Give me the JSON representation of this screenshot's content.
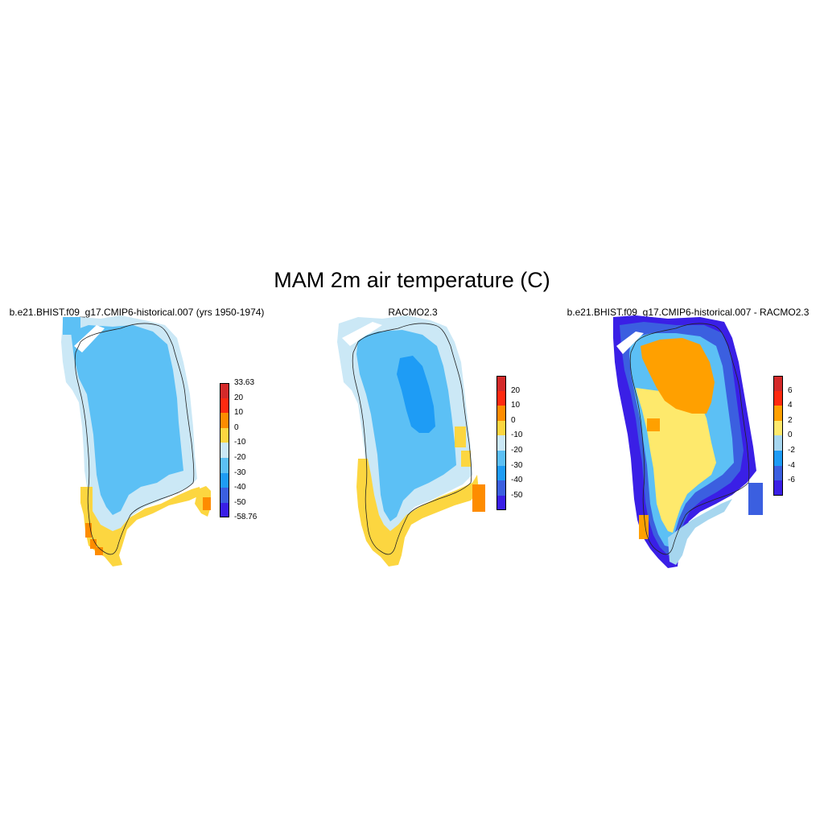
{
  "figure": {
    "title": "MAM 2m air temperature (C)"
  },
  "colors": {
    "c1": "#3a1fe6",
    "c2": "#3b5fe0",
    "c3": "#1e9cf5",
    "c4": "#5cc0f5",
    "c5": "#cbe8f6",
    "c6": "#fcd640",
    "c7": "#fe8c00",
    "c8": "#ff2a10",
    "c9": "#d42a2a",
    "d4": "#fee96c",
    "d3": "#ffa000",
    "d2": "#a6d6ef"
  },
  "panels": [
    {
      "id": "model",
      "title": "b.e21.BHIST.f09_g17.CMIP6-historical.007 (yrs 1950-1974)",
      "colorbar": {
        "labels": [
          "33.63",
          "20",
          "10",
          "0",
          "-10",
          "-20",
          "-30",
          "-40",
          "-50",
          "-58.76"
        ],
        "colors": [
          "#d42a2a",
          "#ff2a10",
          "#fe8c00",
          "#fcd640",
          "#cbe8f6",
          "#5cc0f5",
          "#1e9cf5",
          "#3b5fe0",
          "#3a1fe6"
        ]
      }
    },
    {
      "id": "racmo",
      "title": "RACMO2.3",
      "colorbar": {
        "labels": [
          "20",
          "10",
          "0",
          "-10",
          "-20",
          "-30",
          "-40",
          "-50"
        ],
        "colors": [
          "#d42a2a",
          "#ff2a10",
          "#fe8c00",
          "#fcd640",
          "#cbe8f6",
          "#5cc0f5",
          "#1e9cf5",
          "#3b5fe0",
          "#3a1fe6"
        ]
      }
    },
    {
      "id": "difference",
      "title": "b.e21.BHIST.f09_g17.CMIP6-historical.007 - RACMO2.3",
      "colorbar": {
        "labels": [
          "6",
          "4",
          "2",
          "0",
          "-2",
          "-4",
          "-6"
        ],
        "colors": [
          "#d42a2a",
          "#ff2a10",
          "#ffa000",
          "#fee96c",
          "#a6d6ef",
          "#1e9cf5",
          "#3b5fe0",
          "#3a1fe6"
        ]
      }
    }
  ]
}
